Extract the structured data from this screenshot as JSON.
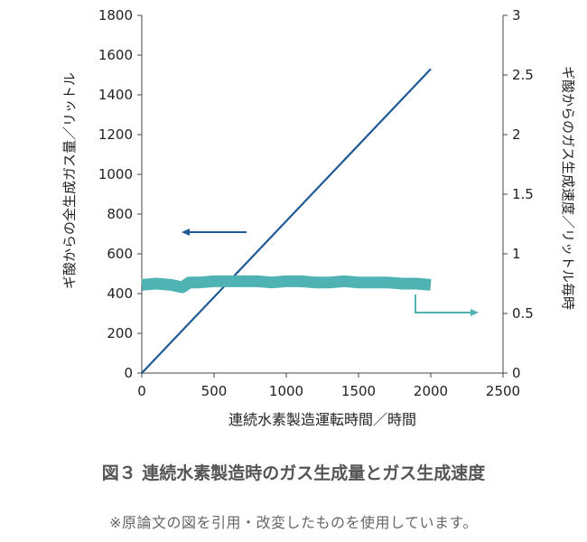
{
  "chart_data": {
    "type": "line",
    "xlabel": "連続水素製造運転時間／時間",
    "ylabel_left": "ギ酸からの全生成ガス量／リットル",
    "ylabel_right": "ギ酸からのガス生成速度／リットル毎時",
    "xlim": [
      0,
      2500
    ],
    "ylim_left": [
      0,
      1800
    ],
    "ylim_right": [
      0,
      3
    ],
    "x_ticks": [
      "0",
      "500",
      "1000",
      "1500",
      "2000",
      "2500"
    ],
    "y_left_ticks": [
      "0",
      "200",
      "400",
      "600",
      "800",
      "1000",
      "1200",
      "1400",
      "1600",
      "1800"
    ],
    "y_right_ticks": [
      "0",
      "0.5",
      "1",
      "1.5",
      "2",
      "2.5",
      "3"
    ],
    "grid": false,
    "series": [
      {
        "axis": "left",
        "color": "#1f5a96",
        "x": [
          0,
          2000
        ],
        "y": [
          0,
          1530
        ]
      },
      {
        "axis": "right",
        "color": "#4fb3b3",
        "x": [
          0,
          100,
          200,
          280,
          330,
          400,
          500,
          600,
          700,
          800,
          900,
          1000,
          1100,
          1200,
          1300,
          1400,
          1500,
          1600,
          1700,
          1800,
          1900,
          2000
        ],
        "y": [
          0.74,
          0.75,
          0.74,
          0.72,
          0.76,
          0.76,
          0.77,
          0.77,
          0.77,
          0.77,
          0.76,
          0.77,
          0.77,
          0.76,
          0.76,
          0.77,
          0.76,
          0.76,
          0.76,
          0.75,
          0.75,
          0.74
        ]
      }
    ]
  },
  "caption": "図３ 連続水素製造時のガス生成量とガス生成速度",
  "note": "※原論文の図を引用・改変したものを使用しています。"
}
